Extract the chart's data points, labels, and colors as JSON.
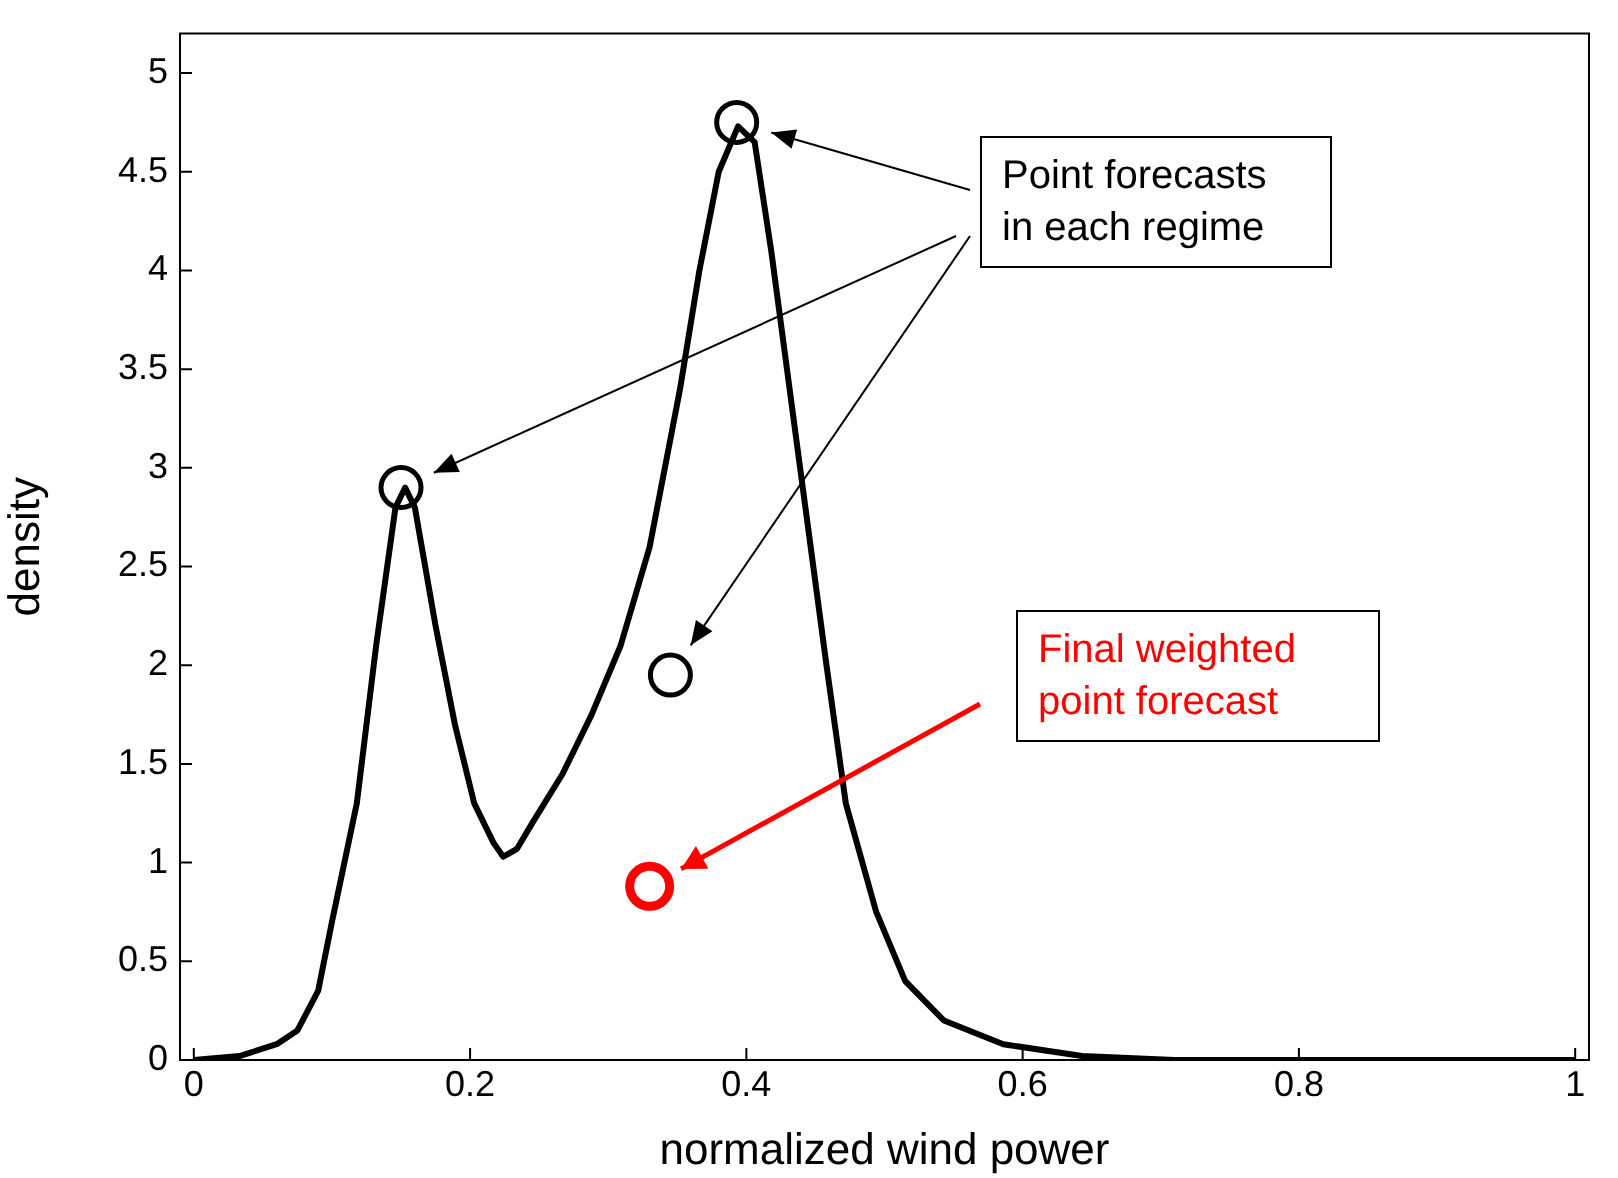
{
  "chart_data": {
    "type": "line",
    "xlabel": "normalized wind power",
    "ylabel": "density",
    "xlim": [
      -0.01,
      1.01
    ],
    "ylim": [
      0,
      5.2
    ],
    "xticks": [
      0,
      0.2,
      0.4,
      0.6,
      0.8,
      1
    ],
    "yticks": [
      0,
      0.5,
      1,
      1.5,
      2,
      2.5,
      3,
      3.5,
      4,
      4.5,
      5
    ],
    "grid": false,
    "legend": false,
    "marker": "circle",
    "series": [
      {
        "type": "line",
        "color": "#000000",
        "marker": "none",
        "x": [
          0,
          0.033,
          0.06,
          0.075,
          0.09,
          0.1,
          0.118,
          0.132,
          0.146,
          0.153,
          0.16,
          0.175,
          0.189,
          0.203,
          0.217,
          0.224,
          0.234,
          0.245,
          0.267,
          0.288,
          0.309,
          0.33,
          0.352,
          0.366,
          0.38,
          0.394,
          0.406,
          0.418,
          0.437,
          0.458,
          0.472,
          0.494,
          0.515,
          0.543,
          0.586,
          0.643,
          0.71,
          1.0
        ],
        "values": [
          0,
          0.02,
          0.08,
          0.15,
          0.35,
          0.7,
          1.3,
          2.1,
          2.8,
          2.9,
          2.8,
          2.2,
          1.7,
          1.3,
          1.1,
          1.03,
          1.07,
          1.2,
          1.45,
          1.75,
          2.1,
          2.6,
          3.4,
          4.0,
          4.5,
          4.73,
          4.65,
          4.1,
          3.1,
          2.0,
          1.3,
          0.75,
          0.4,
          0.2,
          0.08,
          0.02,
          0,
          0
        ]
      },
      {
        "type": "scatter",
        "color": "#000000",
        "x": [
          0.15,
          0.393,
          0.345
        ],
        "values": [
          2.9,
          4.75,
          1.95
        ]
      },
      {
        "type": "scatter",
        "color": "#ff0000",
        "x": [
          0.33
        ],
        "values": [
          0.88
        ]
      }
    ],
    "annotations": [
      "Point forecasts in each regime",
      "Final weighted point forecast"
    ]
  }
}
